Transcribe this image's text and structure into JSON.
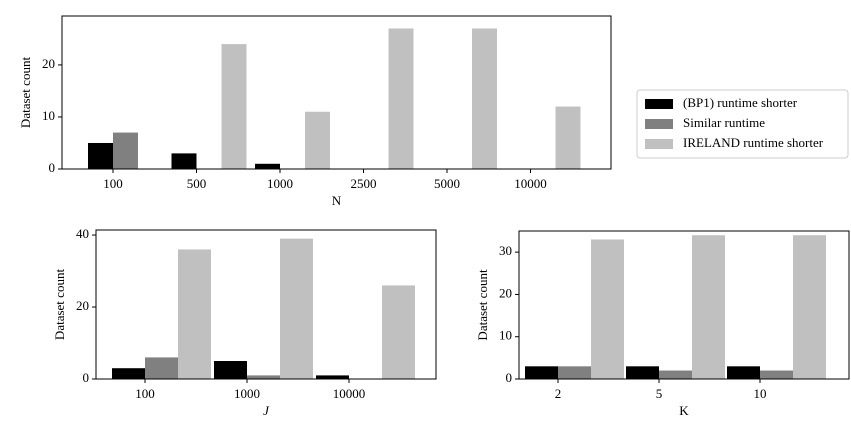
{
  "chart_data": [
    {
      "type": "bar",
      "xlabel": "N",
      "ylabel": "Dataset count",
      "categories": [
        "100",
        "500",
        "1000",
        "2500",
        "5000",
        "10000"
      ],
      "series": [
        {
          "name": "(BP1) runtime shorter",
          "color": "#000000",
          "values": [
            5,
            3,
            1,
            0,
            0,
            0
          ]
        },
        {
          "name": "Similar runtime",
          "color": "#808080",
          "values": [
            7,
            0,
            0,
            0,
            0,
            0
          ]
        },
        {
          "name": "IRELAND runtime shorter",
          "color": "#c0c0c0",
          "values": [
            0,
            24,
            11,
            27,
            27,
            12
          ]
        }
      ],
      "ylim": [
        0,
        29.4
      ],
      "yticks": [
        0,
        10,
        20
      ]
    },
    {
      "type": "bar",
      "xlabel": "J",
      "ylabel": "Dataset count",
      "categories": [
        "100",
        "1000",
        "10000"
      ],
      "series": [
        {
          "color": "#000000",
          "values": [
            3,
            5,
            1
          ]
        },
        {
          "color": "#808080",
          "values": [
            6,
            1,
            0
          ]
        },
        {
          "color": "#c0c0c0",
          "values": [
            36,
            39,
            26
          ]
        }
      ],
      "ylim": [
        0,
        41.4
      ],
      "yticks": [
        0,
        20,
        40
      ]
    },
    {
      "type": "bar",
      "xlabel": "K",
      "ylabel": "Dataset count",
      "categories": [
        "2",
        "5",
        "10"
      ],
      "series": [
        {
          "color": "#000000",
          "values": [
            3,
            3,
            3
          ]
        },
        {
          "color": "#808080",
          "values": [
            3,
            2,
            2
          ]
        },
        {
          "color": "#c0c0c0",
          "values": [
            33,
            34,
            34
          ]
        }
      ],
      "ylim": [
        0,
        35
      ],
      "yticks": [
        0,
        10,
        20,
        30
      ]
    }
  ]
}
